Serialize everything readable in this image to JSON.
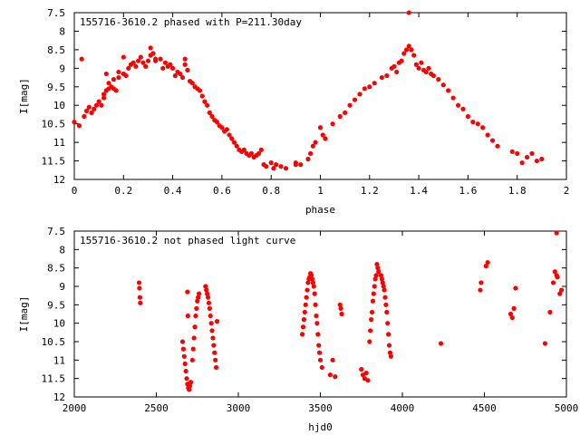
{
  "chart_data": [
    {
      "type": "scatter",
      "title": "155716-3610.2 phased with P=211.30day",
      "xlabel": "phase",
      "ylabel": "I[mag]",
      "xlim": [
        0,
        2
      ],
      "ylim": [
        12,
        7.5
      ],
      "y_inverted": true,
      "grid": false,
      "xticks": [
        "0",
        "0.2",
        "0.4",
        "0.6",
        "0.8",
        "1",
        "1.2",
        "1.4",
        "1.6",
        "1.8",
        "2"
      ],
      "yticks": [
        "7.5",
        "8",
        "8.5",
        "9",
        "9.5",
        "10",
        "10.5",
        "11",
        "11.5",
        "12"
      ],
      "marker_color": "#ff0000",
      "points": [
        [
          0.03,
          8.75
        ],
        [
          0.0,
          10.45
        ],
        [
          0.02,
          10.55
        ],
        [
          0.04,
          10.3
        ],
        [
          0.05,
          10.15
        ],
        [
          0.06,
          10.05
        ],
        [
          0.07,
          10.2
        ],
        [
          0.08,
          10.1
        ],
        [
          0.09,
          10.0
        ],
        [
          0.1,
          9.9
        ],
        [
          0.11,
          10.0
        ],
        [
          0.12,
          9.8
        ],
        [
          0.12,
          9.7
        ],
        [
          0.13,
          9.6
        ],
        [
          0.14,
          9.55
        ],
        [
          0.14,
          9.4
        ],
        [
          0.15,
          9.5
        ],
        [
          0.16,
          9.3
        ],
        [
          0.16,
          9.55
        ],
        [
          0.17,
          9.6
        ],
        [
          0.18,
          9.25
        ],
        [
          0.18,
          9.1
        ],
        [
          0.2,
          9.15
        ],
        [
          0.21,
          9.2
        ],
        [
          0.22,
          9.0
        ],
        [
          0.23,
          8.9
        ],
        [
          0.24,
          8.85
        ],
        [
          0.25,
          8.95
        ],
        [
          0.26,
          8.8
        ],
        [
          0.27,
          8.7
        ],
        [
          0.28,
          8.85
        ],
        [
          0.29,
          8.95
        ],
        [
          0.3,
          8.8
        ],
        [
          0.31,
          8.65
        ],
        [
          0.31,
          8.45
        ],
        [
          0.32,
          8.6
        ],
        [
          0.33,
          8.8
        ],
        [
          0.33,
          8.75
        ],
        [
          0.35,
          8.75
        ],
        [
          0.36,
          9.0
        ],
        [
          0.37,
          8.85
        ],
        [
          0.38,
          8.95
        ],
        [
          0.39,
          8.9
        ],
        [
          0.4,
          9.0
        ],
        [
          0.41,
          9.2
        ],
        [
          0.42,
          9.1
        ],
        [
          0.43,
          9.15
        ],
        [
          0.44,
          9.25
        ],
        [
          0.45,
          8.9
        ],
        [
          0.46,
          9.05
        ],
        [
          0.47,
          9.35
        ],
        [
          0.48,
          9.4
        ],
        [
          0.49,
          9.5
        ],
        [
          0.5,
          9.55
        ],
        [
          0.51,
          9.6
        ],
        [
          0.52,
          9.75
        ],
        [
          0.53,
          9.9
        ],
        [
          0.54,
          10.0
        ],
        [
          0.55,
          10.2
        ],
        [
          0.56,
          10.3
        ],
        [
          0.57,
          10.4
        ],
        [
          0.58,
          10.45
        ],
        [
          0.59,
          10.55
        ],
        [
          0.6,
          10.6
        ],
        [
          0.61,
          10.7
        ],
        [
          0.62,
          10.65
        ],
        [
          0.63,
          10.8
        ],
        [
          0.64,
          10.9
        ],
        [
          0.65,
          11.0
        ],
        [
          0.66,
          11.1
        ],
        [
          0.67,
          11.2
        ],
        [
          0.68,
          11.25
        ],
        [
          0.69,
          11.2
        ],
        [
          0.7,
          11.3
        ],
        [
          0.71,
          11.35
        ],
        [
          0.72,
          11.3
        ],
        [
          0.73,
          11.4
        ],
        [
          0.74,
          11.35
        ],
        [
          0.75,
          11.3
        ],
        [
          0.76,
          11.2
        ],
        [
          0.77,
          11.6
        ],
        [
          0.78,
          11.65
        ],
        [
          0.8,
          11.55
        ],
        [
          0.81,
          11.7
        ],
        [
          0.82,
          11.6
        ],
        [
          0.84,
          11.65
        ],
        [
          0.86,
          11.7
        ],
        [
          0.9,
          11.55
        ],
        [
          0.92,
          11.6
        ],
        [
          0.95,
          11.45
        ],
        [
          0.96,
          11.3
        ],
        [
          0.97,
          11.1
        ],
        [
          0.98,
          11.0
        ],
        [
          1.0,
          10.6
        ],
        [
          1.01,
          10.8
        ],
        [
          1.02,
          10.9
        ],
        [
          1.05,
          10.5
        ],
        [
          1.08,
          10.3
        ],
        [
          1.1,
          10.2
        ],
        [
          1.12,
          10.0
        ],
        [
          1.14,
          9.85
        ],
        [
          1.16,
          9.7
        ],
        [
          1.18,
          9.55
        ],
        [
          1.2,
          9.5
        ],
        [
          1.22,
          9.4
        ],
        [
          1.25,
          9.25
        ],
        [
          1.27,
          9.2
        ],
        [
          1.29,
          9.0
        ],
        [
          1.3,
          8.95
        ],
        [
          1.31,
          9.1
        ],
        [
          1.32,
          8.85
        ],
        [
          1.33,
          8.8
        ],
        [
          1.34,
          8.6
        ],
        [
          1.35,
          8.5
        ],
        [
          1.36,
          8.4
        ],
        [
          1.37,
          8.5
        ],
        [
          1.38,
          8.65
        ],
        [
          1.39,
          8.9
        ],
        [
          1.4,
          9.0
        ],
        [
          1.41,
          8.85
        ],
        [
          1.42,
          9.05
        ],
        [
          1.43,
          9.1
        ],
        [
          1.44,
          9.0
        ],
        [
          1.45,
          9.15
        ],
        [
          1.46,
          9.2
        ],
        [
          1.48,
          9.3
        ],
        [
          1.5,
          9.45
        ],
        [
          1.52,
          9.6
        ],
        [
          1.54,
          9.8
        ],
        [
          1.56,
          10.0
        ],
        [
          1.58,
          10.1
        ],
        [
          1.6,
          10.3
        ],
        [
          1.62,
          10.45
        ],
        [
          1.64,
          10.5
        ],
        [
          1.66,
          10.6
        ],
        [
          1.68,
          10.8
        ],
        [
          1.7,
          10.95
        ],
        [
          1.72,
          11.1
        ],
        [
          1.78,
          11.25
        ],
        [
          1.8,
          11.3
        ],
        [
          1.82,
          11.55
        ],
        [
          1.84,
          11.4
        ],
        [
          1.86,
          11.3
        ],
        [
          1.88,
          11.5
        ],
        [
          1.9,
          11.45
        ],
        [
          1.36,
          7.5
        ],
        [
          0.13,
          9.15
        ],
        [
          0.45,
          8.75
        ],
        [
          0.9,
          11.6
        ],
        [
          0.2,
          8.7
        ]
      ]
    },
    {
      "type": "scatter",
      "title": "155716-3610.2 not phased light curve",
      "xlabel": "hjd0",
      "ylabel": "I[mag]",
      "xlim": [
        2000,
        5000
      ],
      "ylim": [
        12,
        7.5
      ],
      "y_inverted": true,
      "grid": false,
      "xticks": [
        "2000",
        "2500",
        "3000",
        "3500",
        "4000",
        "4500",
        "5000"
      ],
      "yticks": [
        "7.5",
        "8",
        "8.5",
        "9",
        "9.5",
        "10",
        "10.5",
        "11",
        "11.5",
        "12"
      ],
      "marker_color": "#ff0000",
      "points": [
        [
          2395,
          8.9
        ],
        [
          2397,
          9.05
        ],
        [
          2400,
          9.3
        ],
        [
          2402,
          9.45
        ],
        [
          2660,
          10.5
        ],
        [
          2665,
          10.7
        ],
        [
          2670,
          10.9
        ],
        [
          2675,
          11.1
        ],
        [
          2680,
          11.3
        ],
        [
          2685,
          11.5
        ],
        [
          2690,
          11.65
        ],
        [
          2695,
          11.75
        ],
        [
          2700,
          11.8
        ],
        [
          2705,
          11.7
        ],
        [
          2710,
          11.6
        ],
        [
          2690,
          9.15
        ],
        [
          2692,
          9.8
        ],
        [
          2720,
          11.0
        ],
        [
          2725,
          10.7
        ],
        [
          2730,
          10.4
        ],
        [
          2735,
          10.1
        ],
        [
          2740,
          9.8
        ],
        [
          2745,
          9.6
        ],
        [
          2750,
          9.4
        ],
        [
          2755,
          9.3
        ],
        [
          2760,
          9.2
        ],
        [
          2800,
          9.0
        ],
        [
          2805,
          9.1
        ],
        [
          2810,
          9.2
        ],
        [
          2815,
          9.3
        ],
        [
          2820,
          9.45
        ],
        [
          2825,
          9.6
        ],
        [
          2830,
          9.8
        ],
        [
          2835,
          10.0
        ],
        [
          2840,
          10.2
        ],
        [
          2845,
          10.4
        ],
        [
          2850,
          10.6
        ],
        [
          2855,
          10.8
        ],
        [
          2860,
          11.0
        ],
        [
          2865,
          11.2
        ],
        [
          2870,
          9.95
        ],
        [
          3390,
          10.3
        ],
        [
          3395,
          10.1
        ],
        [
          3400,
          9.9
        ],
        [
          3405,
          9.7
        ],
        [
          3410,
          9.5
        ],
        [
          3415,
          9.3
        ],
        [
          3420,
          9.1
        ],
        [
          3425,
          8.9
        ],
        [
          3430,
          8.8
        ],
        [
          3435,
          8.75
        ],
        [
          3440,
          8.65
        ],
        [
          3445,
          8.7
        ],
        [
          3450,
          8.8
        ],
        [
          3455,
          8.9
        ],
        [
          3460,
          9.0
        ],
        [
          3465,
          9.2
        ],
        [
          3470,
          9.5
        ],
        [
          3475,
          9.8
        ],
        [
          3480,
          10.0
        ],
        [
          3485,
          10.3
        ],
        [
          3490,
          10.6
        ],
        [
          3495,
          10.8
        ],
        [
          3500,
          11.0
        ],
        [
          3510,
          11.2
        ],
        [
          3560,
          11.4
        ],
        [
          3575,
          11.0
        ],
        [
          3590,
          11.45
        ],
        [
          3620,
          9.5
        ],
        [
          3625,
          9.6
        ],
        [
          3630,
          9.75
        ],
        [
          3750,
          11.25
        ],
        [
          3760,
          11.4
        ],
        [
          3770,
          11.5
        ],
        [
          3780,
          11.35
        ],
        [
          3790,
          11.55
        ],
        [
          3800,
          10.5
        ],
        [
          3805,
          10.2
        ],
        [
          3810,
          9.9
        ],
        [
          3815,
          9.7
        ],
        [
          3820,
          9.4
        ],
        [
          3825,
          9.2
        ],
        [
          3830,
          9.0
        ],
        [
          3835,
          8.8
        ],
        [
          3840,
          8.7
        ],
        [
          3845,
          8.4
        ],
        [
          3850,
          8.5
        ],
        [
          3855,
          8.6
        ],
        [
          3870,
          8.7
        ],
        [
          3875,
          8.8
        ],
        [
          3880,
          8.9
        ],
        [
          3885,
          9.0
        ],
        [
          3890,
          9.1
        ],
        [
          3895,
          9.3
        ],
        [
          3900,
          9.5
        ],
        [
          3905,
          9.7
        ],
        [
          3910,
          10.0
        ],
        [
          3915,
          10.3
        ],
        [
          3920,
          10.6
        ],
        [
          3925,
          10.8
        ],
        [
          3930,
          10.9
        ],
        [
          4235,
          10.55
        ],
        [
          4475,
          9.1
        ],
        [
          4480,
          8.9
        ],
        [
          4510,
          8.45
        ],
        [
          4520,
          8.35
        ],
        [
          4660,
          9.75
        ],
        [
          4670,
          9.85
        ],
        [
          4680,
          9.6
        ],
        [
          4690,
          9.05
        ],
        [
          4870,
          10.55
        ],
        [
          4900,
          9.7
        ],
        [
          4920,
          8.9
        ],
        [
          4930,
          8.6
        ],
        [
          4940,
          8.7
        ],
        [
          4945,
          8.75
        ],
        [
          4960,
          9.2
        ],
        [
          4970,
          9.1
        ],
        [
          4940,
          7.55
        ]
      ]
    }
  ]
}
